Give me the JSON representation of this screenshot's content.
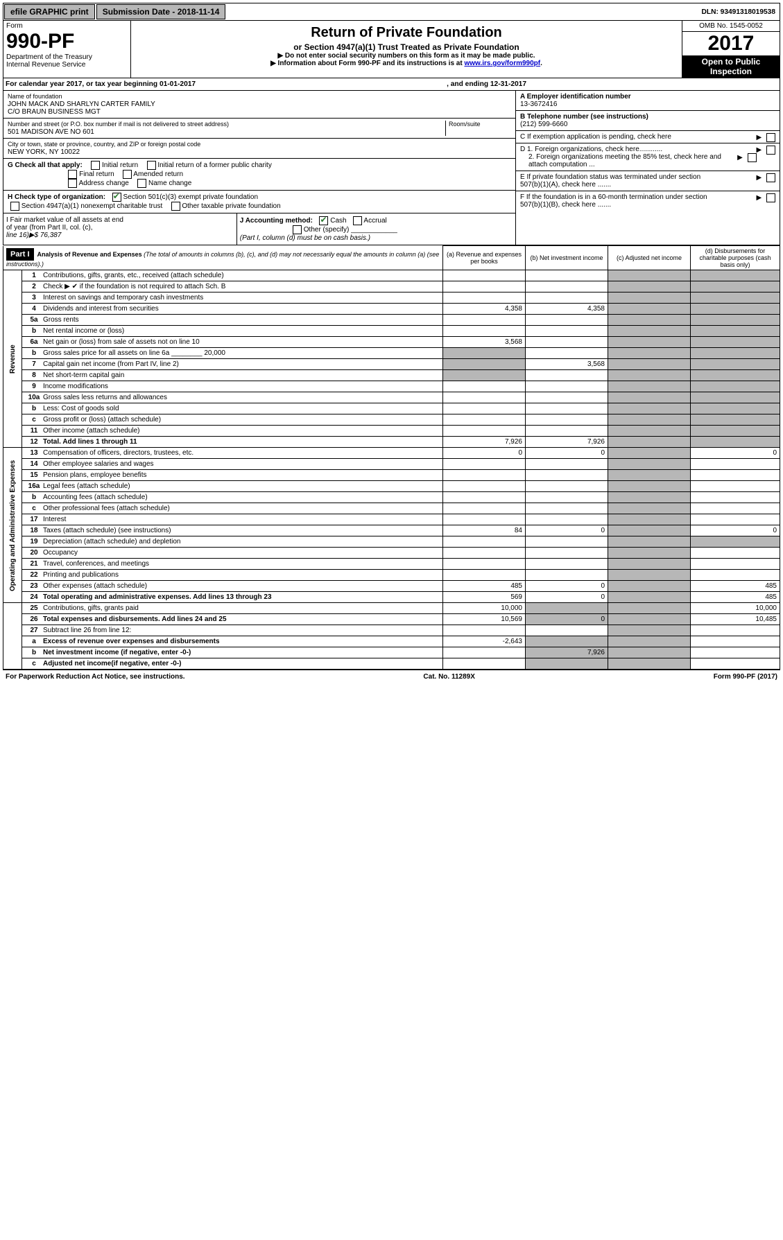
{
  "topbar": {
    "efile": "efile GRAPHIC print",
    "subdate_label": "Submission Date - 2018-11-14",
    "dln_label": "DLN: 93491318019538"
  },
  "header": {
    "form_word": "Form",
    "form_num": "990-PF",
    "dept": "Department of the Treasury",
    "irs": "Internal Revenue Service",
    "title": "Return of Private Foundation",
    "subtitle": "or Section 4947(a)(1) Trust Treated as Private Foundation",
    "note1": "▶ Do not enter social security numbers on this form as it may be made public.",
    "note2_pre": "▶ Information about Form 990-PF and its instructions is at ",
    "note2_link": "www.irs.gov/form990pf",
    "omb": "OMB No. 1545-0052",
    "year": "2017",
    "open": "Open to Public Inspection"
  },
  "calyear": {
    "a": "For calendar year 2017, or tax year beginning 01-01-2017",
    "b": ", and ending 12-31-2017"
  },
  "id_left": {
    "name_lbl": "Name of foundation",
    "name1": "JOHN MACK AND SHARLYN CARTER FAMILY",
    "name2": "C/O BRAUN BUSINESS MGT",
    "addr_lbl": "Number and street (or P.O. box number if mail is not delivered to street address)",
    "room_lbl": "Room/suite",
    "addr": "501 MADISON AVE NO 601",
    "city_lbl": "City or town, state or province, country, and ZIP or foreign postal code",
    "city": "NEW YORK, NY  10022"
  },
  "id_right": {
    "a_lbl": "A Employer identification number",
    "a_val": "13-3672416",
    "b_lbl": "B Telephone number (see instructions)",
    "b_val": "(212) 599-6660",
    "c_lbl": "C If exemption application is pending, check here",
    "d1": "D 1. Foreign organizations, check here............",
    "d2": "2. Foreign organizations meeting the 85% test, check here and attach computation ...",
    "e": "E  If private foundation status was terminated under section 507(b)(1)(A), check here .......",
    "f": "F  If the foundation is in a 60-month termination under section 507(b)(1)(B), check here ......."
  },
  "g": {
    "label": "G Check all that apply:",
    "opts": [
      "Initial return",
      "Initial return of a former public charity",
      "Final return",
      "Amended return",
      "Address change",
      "Name change"
    ]
  },
  "h": {
    "label": "H Check type of organization:",
    "o1": "Section 501(c)(3) exempt private foundation",
    "o2": "Section 4947(a)(1) nonexempt charitable trust",
    "o3": "Other taxable private foundation"
  },
  "i": {
    "l1": "I Fair market value of all assets at end",
    "l2": "of year (from Part II, col. (c),",
    "l3": "line 16)▶$  76,387"
  },
  "j": {
    "lbl": "J Accounting method:",
    "cash": "Cash",
    "accrual": "Accrual",
    "other": "Other (specify)",
    "note": "(Part I, column (d) must be on cash basis.)"
  },
  "part1": {
    "head": "Part I",
    "title": "Analysis of Revenue and Expenses",
    "sub": " (The total of amounts in columns (b), (c), and (d) may not necessarily equal the amounts in column (a) (see instructions).)",
    "cols": {
      "a": "(a)    Revenue and expenses per books",
      "b": "(b)  Net investment income",
      "c": "(c)  Adjusted net income",
      "d": "(d)  Disbursements for charitable purposes (cash basis only)"
    }
  },
  "rows": [
    {
      "n": "1",
      "d": "Contributions, gifts, grants, etc., received (attach schedule)"
    },
    {
      "n": "2",
      "d": "Check ▶ ✔ if the foundation is not required to attach Sch. B"
    },
    {
      "n": "3",
      "d": "Interest on savings and temporary cash investments"
    },
    {
      "n": "4",
      "d": "Dividends and interest from securities",
      "a": "4,358",
      "b": "4,358"
    },
    {
      "n": "5a",
      "d": "Gross rents"
    },
    {
      "n": "b",
      "d": "Net rental income or (loss)"
    },
    {
      "n": "6a",
      "d": "Net gain or (loss) from sale of assets not on line 10",
      "a": "3,568"
    },
    {
      "n": "b",
      "d": "Gross sales price for all assets on line 6a ________ 20,000"
    },
    {
      "n": "7",
      "d": "Capital gain net income (from Part IV, line 2)",
      "b": "3,568"
    },
    {
      "n": "8",
      "d": "Net short-term capital gain"
    },
    {
      "n": "9",
      "d": "Income modifications"
    },
    {
      "n": "10a",
      "d": "Gross sales less returns and allowances"
    },
    {
      "n": "b",
      "d": "Less: Cost of goods sold"
    },
    {
      "n": "c",
      "d": "Gross profit or (loss) (attach schedule)"
    },
    {
      "n": "11",
      "d": "Other income (attach schedule)"
    },
    {
      "n": "12",
      "d": "Total. Add lines 1 through 11",
      "a": "7,926",
      "b": "7,926",
      "bold": true
    },
    {
      "n": "13",
      "d": "Compensation of officers, directors, trustees, etc.",
      "a": "0",
      "b": "0",
      "dcol": "0"
    },
    {
      "n": "14",
      "d": "Other employee salaries and wages"
    },
    {
      "n": "15",
      "d": "Pension plans, employee benefits"
    },
    {
      "n": "16a",
      "d": "Legal fees (attach schedule)"
    },
    {
      "n": "b",
      "d": "Accounting fees (attach schedule)"
    },
    {
      "n": "c",
      "d": "Other professional fees (attach schedule)"
    },
    {
      "n": "17",
      "d": "Interest"
    },
    {
      "n": "18",
      "d": "Taxes (attach schedule) (see instructions)",
      "a": "84",
      "b": "0",
      "dcol": "0"
    },
    {
      "n": "19",
      "d": "Depreciation (attach schedule) and depletion"
    },
    {
      "n": "20",
      "d": "Occupancy"
    },
    {
      "n": "21",
      "d": "Travel, conferences, and meetings"
    },
    {
      "n": "22",
      "d": "Printing and publications"
    },
    {
      "n": "23",
      "d": "Other expenses (attach schedule)",
      "a": "485",
      "b": "0",
      "dcol": "485"
    },
    {
      "n": "24",
      "d": "Total operating and administrative expenses. Add lines 13 through 23",
      "a": "569",
      "b": "0",
      "dcol": "485",
      "bold": true
    },
    {
      "n": "25",
      "d": "Contributions, gifts, grants paid",
      "a": "10,000",
      "dcol": "10,000"
    },
    {
      "n": "26",
      "d": "Total expenses and disbursements. Add lines 24 and 25",
      "a": "10,569",
      "b": "0",
      "dcol": "10,485",
      "bold": true
    },
    {
      "n": "27",
      "d": "Subtract line 26 from line 12:"
    },
    {
      "n": "a",
      "d": "Excess of revenue over expenses and disbursements",
      "a": "-2,643",
      "bold": true
    },
    {
      "n": "b",
      "d": "Net investment income (if negative, enter -0-)",
      "b": "7,926",
      "bold": true
    },
    {
      "n": "c",
      "d": "Adjusted net income(if negative, enter -0-)",
      "bold": true
    }
  ],
  "footer": {
    "left": "For Paperwork Reduction Act Notice, see instructions.",
    "mid": "Cat. No. 11289X",
    "right": "Form 990-PF (2017)"
  },
  "section_labels": {
    "rev": "Revenue",
    "exp": "Operating and Administrative Expenses"
  }
}
